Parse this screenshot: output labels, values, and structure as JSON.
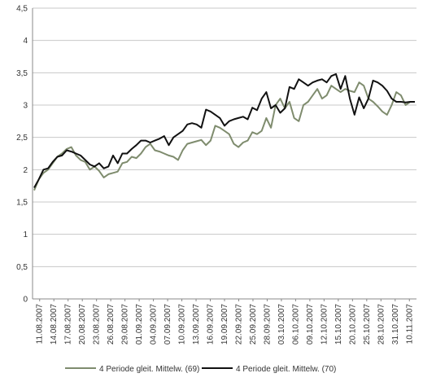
{
  "chart_data": {
    "type": "line",
    "title": "",
    "xlabel": "",
    "ylabel": "",
    "ylim": [
      0,
      4.5
    ],
    "y_ticks": [
      "0",
      "0,5",
      "1",
      "1,5",
      "2",
      "2,5",
      "3",
      "3,5",
      "4",
      "4,5"
    ],
    "grid": {
      "horizontal": true,
      "vertical": false
    },
    "legend_position": "bottom",
    "x_range": [
      "11.08.2007",
      "14.11.2007"
    ],
    "x_tick_labels": [
      "11.08.2007",
      "14.08.2007",
      "17.08.2007",
      "20.08.2007",
      "23.08.2007",
      "26.08.2007",
      "29.08.2007",
      "01.09.2007",
      "04.09.2007",
      "07.09.2007",
      "10.09.2007",
      "13.09.2007",
      "16.09.2007",
      "19.09.2007",
      "22.09.2007",
      "25.09.2007",
      "28.09.2007",
      "03.10.2007",
      "06.10.2007",
      "09.10.2007",
      "12.10.2007",
      "15.10.2007",
      "20.10.2007",
      "25.10.2007",
      "28.10.2007",
      "31.10.2007",
      "10.11.2007"
    ],
    "series": [
      {
        "name": "4 Periode gleit. Mittelw. (69)",
        "color": "#7f8c6e",
        "values": [
          1.68,
          1.85,
          1.95,
          2.0,
          2.1,
          2.2,
          2.25,
          2.32,
          2.35,
          2.22,
          2.15,
          2.12,
          2.0,
          2.05,
          1.98,
          1.88,
          1.93,
          1.95,
          1.97,
          2.1,
          2.12,
          2.2,
          2.18,
          2.25,
          2.35,
          2.4,
          2.3,
          2.28,
          2.25,
          2.22,
          2.2,
          2.15,
          2.3,
          2.4,
          2.42,
          2.44,
          2.46,
          2.38,
          2.45,
          2.68,
          2.65,
          2.6,
          2.55,
          2.4,
          2.35,
          2.42,
          2.45,
          2.58,
          2.55,
          2.6,
          2.8,
          2.65,
          3.0,
          3.1,
          2.95,
          3.05,
          2.8,
          2.75,
          3.0,
          3.05,
          3.15,
          3.25,
          3.1,
          3.15,
          3.3,
          3.25,
          3.2,
          3.25,
          3.22,
          3.2,
          3.35,
          3.3,
          3.1,
          3.05,
          2.98,
          2.9,
          2.85,
          3.0,
          3.2,
          3.15,
          3.0,
          3.05,
          3.05
        ]
      },
      {
        "name": "4 Periode gleit. Mittelw. (70)",
        "color": "#111111",
        "values": [
          1.72,
          1.85,
          2.0,
          2.02,
          2.12,
          2.2,
          2.22,
          2.3,
          2.28,
          2.25,
          2.22,
          2.15,
          2.08,
          2.05,
          2.1,
          2.02,
          2.05,
          2.22,
          2.1,
          2.25,
          2.25,
          2.32,
          2.38,
          2.45,
          2.45,
          2.42,
          2.45,
          2.48,
          2.52,
          2.38,
          2.5,
          2.55,
          2.6,
          2.7,
          2.72,
          2.7,
          2.65,
          2.93,
          2.9,
          2.85,
          2.8,
          2.68,
          2.75,
          2.78,
          2.8,
          2.82,
          2.78,
          2.96,
          2.92,
          3.1,
          3.2,
          2.95,
          3.0,
          2.88,
          2.95,
          3.28,
          3.25,
          3.4,
          3.35,
          3.3,
          3.35,
          3.38,
          3.4,
          3.35,
          3.45,
          3.48,
          3.25,
          3.45,
          3.1,
          2.85,
          3.12,
          2.95,
          3.1,
          3.38,
          3.35,
          3.3,
          3.22,
          3.1,
          3.05,
          3.05,
          3.04,
          3.05,
          3.05
        ]
      }
    ]
  }
}
